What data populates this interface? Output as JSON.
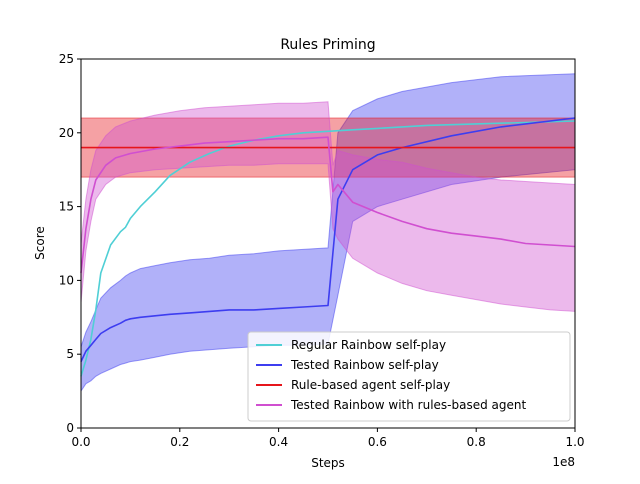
{
  "chart_data": {
    "type": "line",
    "title": "Rules Priming",
    "xlabel": "Steps",
    "ylabel": "Score",
    "x_offset_label": "1e8",
    "xlim": [
      0,
      1.0
    ],
    "ylim": [
      0,
      25
    ],
    "x_ticks": [
      "0.0",
      "0.2",
      "0.4",
      "0.6",
      "0.8",
      "1.0"
    ],
    "y_ticks": [
      "0",
      "5",
      "10",
      "15",
      "20",
      "25"
    ],
    "grid": false,
    "legend_position": "lower-right",
    "series": [
      {
        "name": "Regular Rainbow self-play",
        "color": "#4fcfd5",
        "x": [
          0.0,
          0.01,
          0.02,
          0.03,
          0.04,
          0.06,
          0.08,
          0.09,
          0.1,
          0.12,
          0.15,
          0.18,
          0.22,
          0.26,
          0.3,
          0.35,
          0.4,
          0.45,
          0.5,
          0.55,
          0.6,
          0.65,
          0.7,
          0.8,
          0.9,
          1.0
        ],
        "values": [
          3.5,
          4.6,
          6.0,
          8.0,
          10.5,
          12.4,
          13.3,
          13.6,
          14.2,
          15.0,
          16.0,
          17.1,
          18.0,
          18.6,
          19.1,
          19.5,
          19.8,
          20.0,
          20.1,
          20.2,
          20.3,
          20.4,
          20.5,
          20.6,
          20.7,
          20.8
        ]
      },
      {
        "name": "Tested Rainbow self-play",
        "color": "#3d3df0",
        "band": {
          "lower": [
            2.5,
            3.0,
            3.2,
            3.5,
            3.7,
            4.0,
            4.3,
            4.4,
            4.5,
            4.6,
            4.8,
            5.0,
            5.2,
            5.3,
            5.4,
            5.5,
            5.6,
            5.6,
            5.7,
            9.0,
            14.0,
            15.0,
            15.5,
            16.5,
            17.0,
            17.5
          ],
          "upper": [
            5.5,
            6.5,
            7.2,
            8.0,
            8.8,
            9.5,
            10.0,
            10.3,
            10.5,
            10.8,
            11.0,
            11.2,
            11.4,
            11.5,
            11.7,
            11.8,
            12.0,
            12.1,
            12.2,
            20.0,
            21.5,
            22.3,
            22.8,
            23.4,
            23.8,
            24.0
          ]
        },
        "x": [
          0.0,
          0.01,
          0.02,
          0.03,
          0.04,
          0.06,
          0.08,
          0.09,
          0.1,
          0.12,
          0.15,
          0.18,
          0.22,
          0.26,
          0.3,
          0.35,
          0.4,
          0.45,
          0.5,
          0.52,
          0.55,
          0.6,
          0.65,
          0.75,
          0.85,
          1.0
        ],
        "values": [
          4.5,
          5.2,
          5.6,
          6.0,
          6.4,
          6.8,
          7.1,
          7.3,
          7.4,
          7.5,
          7.6,
          7.7,
          7.8,
          7.9,
          8.0,
          8.0,
          8.1,
          8.2,
          8.3,
          15.5,
          17.5,
          18.5,
          19.0,
          19.8,
          20.4,
          21.0
        ]
      },
      {
        "name": "Rule-based agent self-play",
        "color": "#e6151b",
        "x": [
          0.0,
          1.0
        ],
        "values": [
          19.0,
          19.0
        ],
        "band": {
          "lower": [
            17.0,
            17.0
          ],
          "upper": [
            21.0,
            21.0
          ]
        }
      },
      {
        "name": "Tested Rainbow with rules-based agent",
        "color": "#d04fd0",
        "x": [
          0.0,
          0.01,
          0.02,
          0.03,
          0.05,
          0.07,
          0.1,
          0.15,
          0.2,
          0.25,
          0.3,
          0.35,
          0.4,
          0.45,
          0.5,
          0.51,
          0.52,
          0.55,
          0.6,
          0.65,
          0.7,
          0.75,
          0.8,
          0.85,
          0.9,
          0.95,
          1.0
        ],
        "values": [
          10.5,
          13.5,
          15.5,
          16.8,
          17.8,
          18.3,
          18.6,
          18.9,
          19.1,
          19.3,
          19.4,
          19.5,
          19.6,
          19.6,
          19.7,
          16.0,
          16.5,
          15.3,
          14.6,
          14.0,
          13.5,
          13.2,
          13.0,
          12.8,
          12.5,
          12.4,
          12.3
        ],
        "band": {
          "lower": [
            8.5,
            12.0,
            14.0,
            15.5,
            16.5,
            17.0,
            17.3,
            17.5,
            17.6,
            17.7,
            17.8,
            17.8,
            17.9,
            17.9,
            17.9,
            13.5,
            12.8,
            11.5,
            10.5,
            9.8,
            9.3,
            9.0,
            8.7,
            8.4,
            8.2,
            8.0,
            7.9
          ],
          "upper": [
            12.5,
            15.5,
            17.5,
            18.8,
            19.8,
            20.4,
            20.8,
            21.2,
            21.5,
            21.7,
            21.8,
            21.9,
            22.0,
            22.0,
            22.1,
            17.8,
            18.8,
            18.5,
            18.2,
            18.0,
            17.6,
            17.3,
            17.0,
            16.8,
            16.7,
            16.6,
            16.5
          ]
        }
      }
    ]
  }
}
